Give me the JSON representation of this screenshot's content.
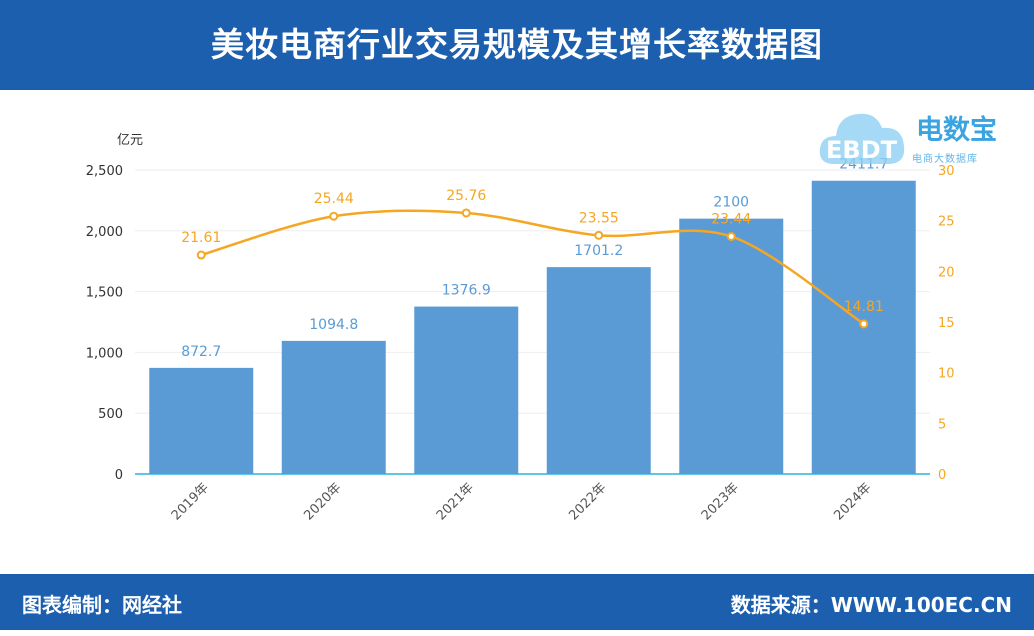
{
  "header": {
    "title": "美妆电商行业交易规模及其增长率数据图"
  },
  "footer": {
    "left": "图表编制：网经社",
    "right": "数据来源：WWW.100EC.CN"
  },
  "logo": {
    "name": "电数宝",
    "sub": "电商大数据库",
    "badge": "EBDT",
    "icon": "cloud-icon"
  },
  "colors": {
    "bar": "#5b9bd5",
    "line": "#f5a623",
    "header": "#1c5fae",
    "bar_label": "#5b9bd5",
    "line_label": "#f5a623"
  },
  "chart_data": {
    "type": "bar",
    "title": "美妆电商行业交易规模及其增长率数据图",
    "y_unit": "亿元",
    "categories": [
      "2019年",
      "2020年",
      "2021年",
      "2022年",
      "2023年",
      "2024年"
    ],
    "series": [
      {
        "type": "bar",
        "axis": "left",
        "values": [
          872.7,
          1094.8,
          1376.9,
          1701.2,
          2100,
          2411.7
        ],
        "labels": [
          "872.7",
          "1094.8",
          "1376.9",
          "1701.2",
          "2100",
          "2411.7"
        ]
      },
      {
        "type": "line",
        "axis": "right",
        "values": [
          21.61,
          25.44,
          25.76,
          23.55,
          23.44,
          14.81
        ],
        "labels": [
          "21.61",
          "25.44",
          "25.76",
          "23.55",
          "23.44",
          "14.81"
        ]
      }
    ],
    "y_left": {
      "range": [
        0,
        2500
      ],
      "ticks": [
        "0",
        "500",
        "1,000",
        "1,500",
        "2,000",
        "2,500"
      ],
      "tick_values": [
        0,
        500,
        1000,
        1500,
        2000,
        2500
      ]
    },
    "y_right": {
      "range": [
        0,
        30
      ],
      "ticks": [
        "0",
        "5",
        "10",
        "15",
        "20",
        "25",
        "30"
      ],
      "tick_values": [
        0,
        5,
        10,
        15,
        20,
        25,
        30
      ]
    },
    "grid": true,
    "legend": "none"
  }
}
